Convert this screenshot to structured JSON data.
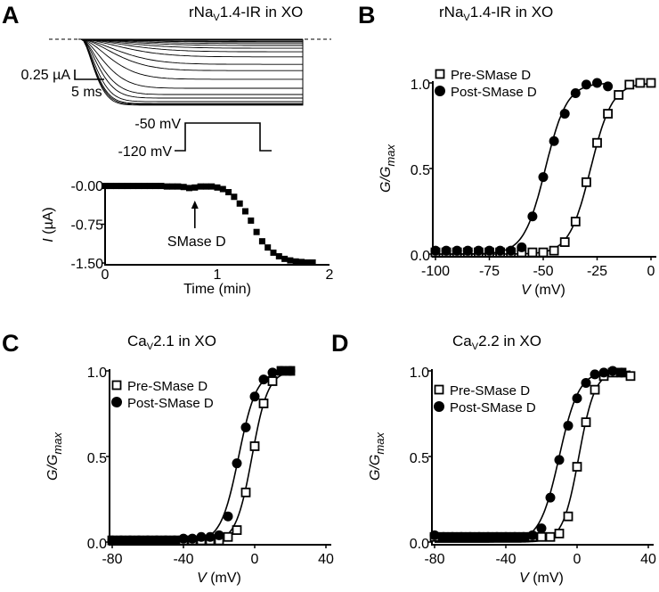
{
  "chart_data": [
    {
      "panel": "A",
      "type": "line",
      "title": {
        "pre": "rNa",
        "sub": "V",
        "post": "1.4-IR in XO"
      },
      "traces": {
        "scale_current": "0.25 µA",
        "scale_time": "5 ms",
        "steady_amplitudes_uA": [
          0,
          0.02,
          0.05,
          0.07,
          0.11,
          0.16,
          0.23,
          0.32,
          0.45,
          0.64,
          0.8,
          1.02,
          1.25,
          1.41,
          1.5,
          1.59,
          1.64,
          1.66,
          1.68
        ],
        "protocol": {
          "test_label": "-50 mV",
          "hold_label": "-120 mV"
        }
      },
      "timecourse": {
        "type": "scatter",
        "xlabel": "Time (min)",
        "ylabel_italic": "I",
        "ylabel_rest": " (µA)",
        "xlim": [
          0,
          2
        ],
        "ylim": [
          -1.5,
          0
        ],
        "xticks": [
          "0",
          "1",
          "2"
        ],
        "yticks": [
          "-0.00",
          "-0.75",
          "-1.50"
        ],
        "annotation": {
          "label": "SMase D",
          "x": 0.8
        },
        "x": [
          0,
          0.05,
          0.1,
          0.15,
          0.2,
          0.25,
          0.3,
          0.35,
          0.4,
          0.45,
          0.5,
          0.55,
          0.6,
          0.65,
          0.7,
          0.75,
          0.8,
          0.85,
          0.9,
          0.95,
          1.0,
          1.05,
          1.1,
          1.15,
          1.2,
          1.25,
          1.3,
          1.35,
          1.4,
          1.45,
          1.5,
          1.55,
          1.6,
          1.65,
          1.7,
          1.75,
          1.8,
          1.85
        ],
        "y": [
          -0.01,
          -0.01,
          -0.01,
          -0.01,
          -0.01,
          -0.01,
          -0.01,
          -0.01,
          -0.01,
          -0.01,
          -0.01,
          -0.02,
          -0.02,
          -0.02,
          -0.03,
          -0.05,
          -0.04,
          -0.02,
          -0.02,
          -0.02,
          -0.04,
          -0.07,
          -0.13,
          -0.22,
          -0.35,
          -0.5,
          -0.68,
          -0.9,
          -1.08,
          -1.2,
          -1.3,
          -1.37,
          -1.42,
          -1.45,
          -1.47,
          -1.48,
          -1.49,
          -1.49
        ]
      }
    },
    {
      "panel": "B",
      "type": "scatter",
      "title": {
        "pre": "rNa",
        "sub": "V",
        "post": "1.4-IR in XO"
      },
      "xlabel": "(mV)",
      "xlabel_var": "V",
      "ylabel": "G/G",
      "ylabel_sub": "max",
      "xlim": [
        -100,
        0
      ],
      "ylim": [
        0,
        1
      ],
      "xticks": [
        "-100",
        "-75",
        "-50",
        "-25",
        "0"
      ],
      "yticks": [
        "0.0",
        "0.5",
        "1.0"
      ],
      "legend": [
        "Pre-SMase D",
        "Post-SMase D"
      ],
      "series": [
        {
          "name": "Pre-SMase D",
          "marker": "open-square",
          "fit": {
            "vhalf": -28,
            "k": 5
          },
          "x": [
            -100,
            -95,
            -90,
            -85,
            -80,
            -75,
            -70,
            -65,
            -60,
            -55,
            -50,
            -45,
            -40,
            -35,
            -30,
            -25,
            -20,
            -15,
            -10,
            -5,
            0
          ],
          "y": [
            0.01,
            0.01,
            0.01,
            0.01,
            0.01,
            0.01,
            0.01,
            0.01,
            0.01,
            0.01,
            0.01,
            0.02,
            0.07,
            0.19,
            0.42,
            0.65,
            0.82,
            0.93,
            0.99,
            1.0,
            1.0
          ]
        },
        {
          "name": "Post-SMase D",
          "marker": "filled-circle",
          "fit": {
            "vhalf": -49,
            "k": 5
          },
          "x": [
            -100,
            -95,
            -90,
            -85,
            -80,
            -75,
            -70,
            -65,
            -60,
            -55,
            -50,
            -45,
            -40,
            -35,
            -30,
            -25,
            -20
          ],
          "y": [
            0.02,
            0.02,
            0.02,
            0.02,
            0.02,
            0.02,
            0.02,
            0.02,
            0.04,
            0.22,
            0.45,
            0.66,
            0.82,
            0.94,
            0.99,
            1.0,
            0.98
          ]
        }
      ]
    },
    {
      "panel": "C",
      "type": "scatter",
      "title": {
        "pre": "Ca",
        "sub": "V",
        "post": "2.1 in XO"
      },
      "xlabel": "(mV)",
      "xlabel_var": "V",
      "ylabel": "G/G",
      "ylabel_sub": "max",
      "xlim": [
        -80,
        40
      ],
      "ylim": [
        0,
        1
      ],
      "xticks": [
        "-80",
        "-40",
        "0",
        "40"
      ],
      "yticks": [
        "0.0",
        "0.5",
        "1.0"
      ],
      "legend": [
        "Pre-SMase D",
        "Post-SMase D"
      ],
      "series": [
        {
          "name": "Pre-SMase D",
          "marker": "open-square",
          "fit": {
            "vhalf": -1.5,
            "k": 4.5
          },
          "x": [
            -80,
            -75,
            -70,
            -65,
            -60,
            -55,
            -50,
            -45,
            -40,
            -35,
            -30,
            -25,
            -20,
            -15,
            -10,
            -5,
            0,
            5,
            10,
            15,
            20
          ],
          "y": [
            0.01,
            0.01,
            0.01,
            0.01,
            0.01,
            0.01,
            0.01,
            0.01,
            0.01,
            0.01,
            0.01,
            0.01,
            0.01,
            0.03,
            0.07,
            0.29,
            0.56,
            0.81,
            0.94,
            1.0,
            1.0
          ]
        },
        {
          "name": "Post-SMase D",
          "marker": "filled-circle",
          "fit": {
            "vhalf": -9,
            "k": 5
          },
          "x": [
            -80,
            -75,
            -70,
            -65,
            -60,
            -55,
            -50,
            -45,
            -40,
            -35,
            -30,
            -25,
            -20,
            -15,
            -10,
            -5,
            0,
            5,
            10,
            15,
            20
          ],
          "y": [
            0.01,
            0.01,
            0.01,
            0.01,
            0.01,
            0.01,
            0.01,
            0.01,
            0.02,
            0.02,
            0.03,
            0.03,
            0.04,
            0.15,
            0.46,
            0.67,
            0.85,
            0.95,
            0.99,
            1.0,
            1.0
          ]
        }
      ]
    },
    {
      "panel": "D",
      "type": "scatter",
      "title": {
        "pre": "Ca",
        "sub": "V",
        "post": "2.2 in XO"
      },
      "xlabel": "(mV)",
      "xlabel_var": "V",
      "ylabel": "G/G",
      "ylabel_sub": "max",
      "xlim": [
        -80,
        40
      ],
      "ylim": [
        0,
        1
      ],
      "xticks": [
        "-80",
        "-40",
        "0",
        "40"
      ],
      "yticks": [
        "0.0",
        "0.5",
        "1.0"
      ],
      "legend": [
        "Pre-SMase D",
        "Post-SMase D"
      ],
      "series": [
        {
          "name": "Pre-SMase D",
          "marker": "open-square",
          "fit": {
            "vhalf": 1,
            "k": 4.5
          },
          "x": [
            -80,
            -75,
            -70,
            -65,
            -60,
            -55,
            -50,
            -45,
            -40,
            -35,
            -30,
            -25,
            -20,
            -15,
            -10,
            -5,
            0,
            5,
            10,
            15,
            20,
            25,
            30
          ],
          "y": [
            0.03,
            0.03,
            0.03,
            0.03,
            0.03,
            0.03,
            0.03,
            0.03,
            0.03,
            0.03,
            0.03,
            0.03,
            0.03,
            0.03,
            0.05,
            0.15,
            0.44,
            0.7,
            0.89,
            0.97,
            0.99,
            0.99,
            0.97
          ]
        },
        {
          "name": "Post-SMase D",
          "marker": "filled-circle",
          "fit": {
            "vhalf": -10,
            "k": 5.5
          },
          "x": [
            -80,
            -75,
            -70,
            -65,
            -60,
            -55,
            -50,
            -45,
            -40,
            -35,
            -30,
            -25,
            -20,
            -15,
            -10,
            -5,
            0,
            5,
            10,
            15,
            20,
            25
          ],
          "y": [
            0.04,
            0.03,
            0.03,
            0.03,
            0.03,
            0.03,
            0.03,
            0.03,
            0.03,
            0.03,
            0.03,
            0.04,
            0.08,
            0.26,
            0.48,
            0.68,
            0.84,
            0.93,
            0.98,
            0.99,
            1.0,
            0.99
          ]
        }
      ]
    }
  ]
}
